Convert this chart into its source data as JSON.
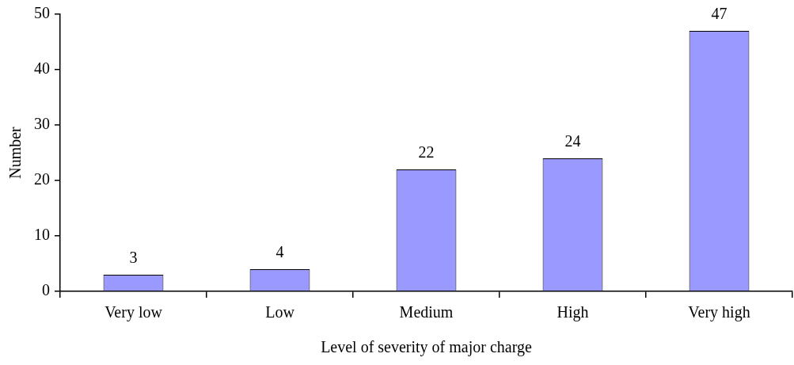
{
  "chart_data": {
    "type": "bar",
    "xlabel": "Level of severity of major charge",
    "ylabel": "Number",
    "categories": [
      "Very low",
      "Low",
      "Medium",
      "High",
      "Very high"
    ],
    "values": [
      3,
      4,
      22,
      24,
      47
    ],
    "color": "#9999ff",
    "ylim": [
      0,
      50
    ],
    "yticks": [
      0,
      10,
      20,
      30,
      40,
      50
    ],
    "grid": false,
    "legend": false,
    "data_labels": true
  }
}
